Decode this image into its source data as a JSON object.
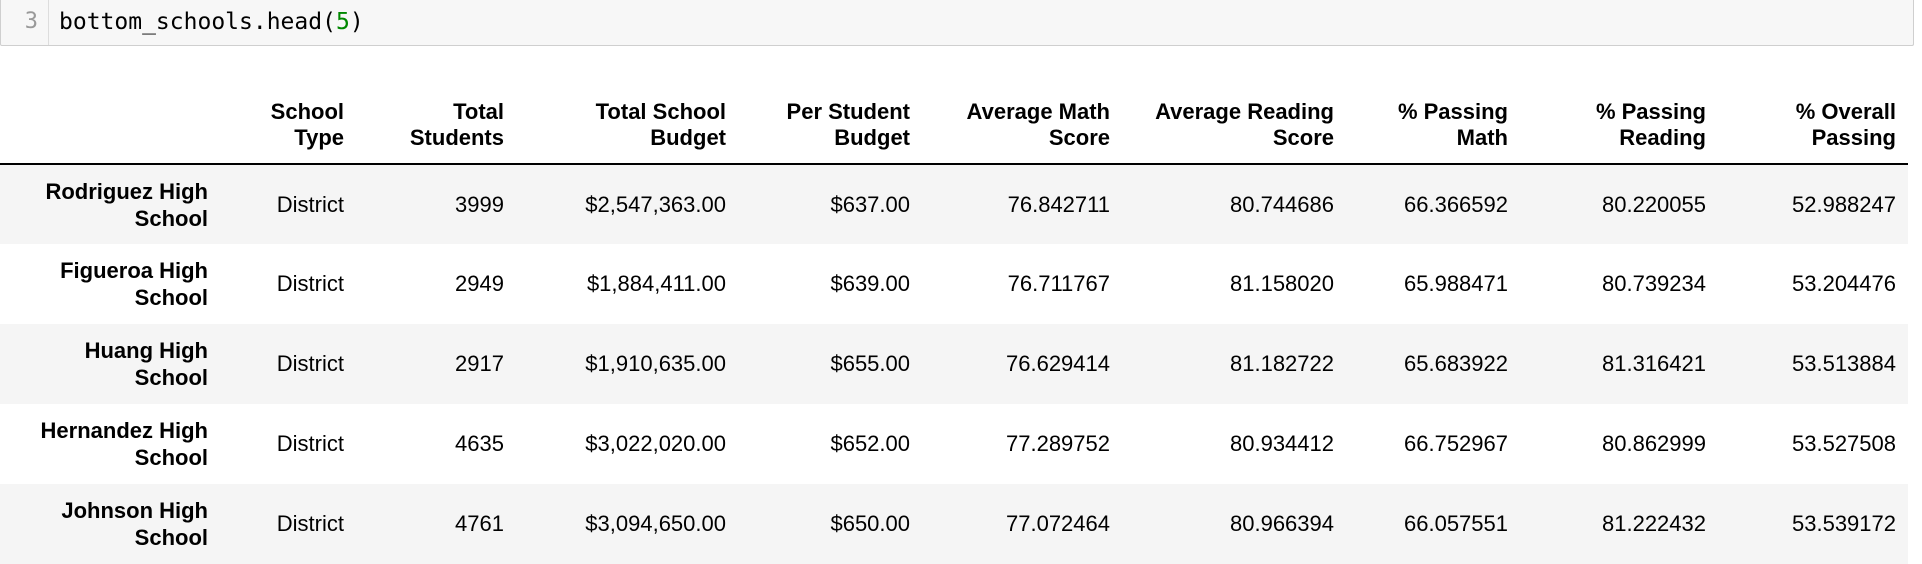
{
  "code_cell": {
    "line_number": "3",
    "code_prefix": "bottom_schools.head(",
    "code_arg": "5",
    "code_suffix": ")"
  },
  "table": {
    "columns": [
      {
        "line1": "",
        "line2": ""
      },
      {
        "line1": "School",
        "line2": "Type"
      },
      {
        "line1": "Total",
        "line2": "Students"
      },
      {
        "line1": "Total School",
        "line2": "Budget"
      },
      {
        "line1": "Per Student",
        "line2": "Budget"
      },
      {
        "line1": "Average Math",
        "line2": "Score"
      },
      {
        "line1": "Average Reading",
        "line2": "Score"
      },
      {
        "line1": "% Passing",
        "line2": "Math"
      },
      {
        "line1": "% Passing",
        "line2": "Reading"
      },
      {
        "line1": "% Overall",
        "line2": "Passing"
      }
    ],
    "rows": [
      {
        "index_line1": "Rodriguez High",
        "index_line2": "School",
        "cells": [
          "District",
          "3999",
          "$2,547,363.00",
          "$637.00",
          "76.842711",
          "80.744686",
          "66.366592",
          "80.220055",
          "52.988247"
        ]
      },
      {
        "index_line1": "Figueroa High",
        "index_line2": "School",
        "cells": [
          "District",
          "2949",
          "$1,884,411.00",
          "$639.00",
          "76.711767",
          "81.158020",
          "65.988471",
          "80.739234",
          "53.204476"
        ]
      },
      {
        "index_line1": "Huang High",
        "index_line2": "School",
        "cells": [
          "District",
          "2917",
          "$1,910,635.00",
          "$655.00",
          "76.629414",
          "81.182722",
          "65.683922",
          "81.316421",
          "53.513884"
        ]
      },
      {
        "index_line1": "Hernandez High",
        "index_line2": "School",
        "cells": [
          "District",
          "4635",
          "$3,022,020.00",
          "$652.00",
          "77.289752",
          "80.934412",
          "66.752967",
          "80.862999",
          "53.527508"
        ]
      },
      {
        "index_line1": "Johnson High",
        "index_line2": "School",
        "cells": [
          "District",
          "4761",
          "$3,094,650.00",
          "$650.00",
          "77.072464",
          "80.966394",
          "66.057551",
          "81.222432",
          "53.539172"
        ]
      }
    ]
  }
}
